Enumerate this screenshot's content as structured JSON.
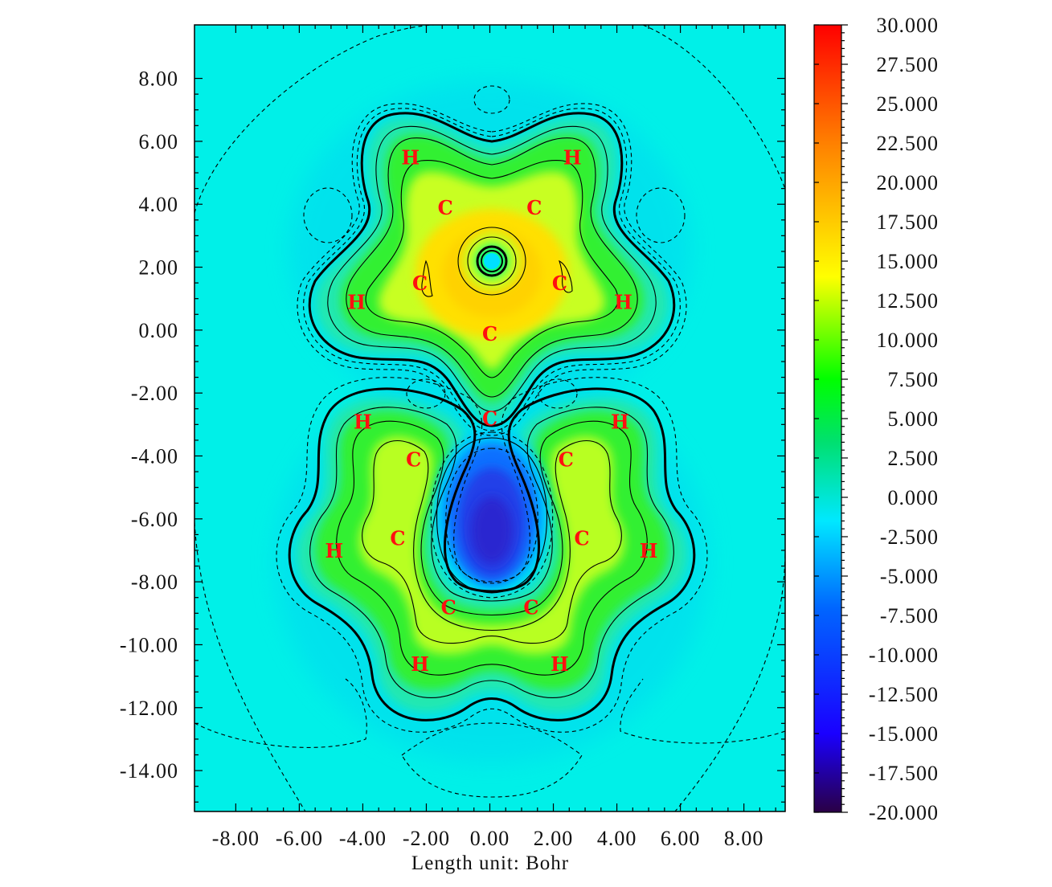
{
  "chart_data": {
    "type": "heatmap",
    "title": "",
    "xlabel": "Length unit: Bohr",
    "ylabel": "",
    "xlim": [
      -9.3,
      9.3
    ],
    "ylim": [
      -15.3,
      9.7
    ],
    "x_ticks": [
      -8,
      -6,
      -4,
      -2,
      0,
      2,
      4,
      6,
      8
    ],
    "x_tick_labels": [
      "-8.00",
      "-6.00",
      "-4.00",
      "-2.00",
      "0.00",
      "2.00",
      "4.00",
      "6.00",
      "8.00"
    ],
    "y_ticks": [
      8,
      6,
      4,
      2,
      0,
      -2,
      -4,
      -6,
      -8,
      -10,
      -12,
      -14
    ],
    "y_tick_labels": [
      "8.00",
      "6.00",
      "4.00",
      "2.00",
      "0.00",
      "-2.00",
      "-4.00",
      "-6.00",
      "-8.00",
      "-10.00",
      "-12.00",
      "-14.00"
    ],
    "colorbar": {
      "min": -20,
      "max": 30,
      "ticks": [
        30,
        27.5,
        25,
        22.5,
        20,
        17.5,
        15,
        12.5,
        10,
        7.5,
        5,
        2.5,
        0,
        -2.5,
        -5,
        -7.5,
        -10,
        -12.5,
        -15,
        -17.5,
        -20
      ],
      "tick_labels": [
        "30.000",
        "27.500",
        "25.000",
        "22.500",
        "20.000",
        "17.500",
        "15.000",
        "12.500",
        "10.000",
        "7.500",
        "5.000",
        "2.500",
        "0.000",
        "-2.500",
        "-5.000",
        "-7.500",
        "-10.000",
        "-12.500",
        "-15.000",
        "-17.500",
        "-20.000"
      ],
      "colors": [
        "#2a0045",
        "#1a00ff",
        "#0066ff",
        "#00e8ff",
        "#00e070",
        "#00ff00",
        "#ffff00",
        "#ff8000",
        "#ff0000"
      ]
    },
    "background_value": -1.5,
    "atoms": [
      {
        "label": "H",
        "x": -2.5,
        "y": 5.5
      },
      {
        "label": "H",
        "x": 2.6,
        "y": 5.5
      },
      {
        "label": "C",
        "x": -1.4,
        "y": 3.9
      },
      {
        "label": "C",
        "x": 1.4,
        "y": 3.9
      },
      {
        "label": "C",
        "x": -2.2,
        "y": 1.5
      },
      {
        "label": "C",
        "x": 2.2,
        "y": 1.5
      },
      {
        "label": "H",
        "x": -4.2,
        "y": 0.9
      },
      {
        "label": "H",
        "x": 4.2,
        "y": 0.9
      },
      {
        "label": "C",
        "x": 0.0,
        "y": -0.1
      },
      {
        "label": "C",
        "x": 0.0,
        "y": -2.8
      },
      {
        "label": "H",
        "x": -4.0,
        "y": -2.9
      },
      {
        "label": "H",
        "x": 4.1,
        "y": -2.9
      },
      {
        "label": "C",
        "x": -2.4,
        "y": -4.1
      },
      {
        "label": "C",
        "x": 2.4,
        "y": -4.1
      },
      {
        "label": "C",
        "x": -2.9,
        "y": -6.6
      },
      {
        "label": "C",
        "x": 2.9,
        "y": -6.6
      },
      {
        "label": "H",
        "x": -4.9,
        "y": -7.0
      },
      {
        "label": "H",
        "x": 5.0,
        "y": -7.0
      },
      {
        "label": "C",
        "x": -1.3,
        "y": -8.8
      },
      {
        "label": "C",
        "x": 1.3,
        "y": -8.8
      },
      {
        "label": "H",
        "x": -2.2,
        "y": -10.6
      },
      {
        "label": "H",
        "x": 2.2,
        "y": -10.6
      }
    ]
  }
}
